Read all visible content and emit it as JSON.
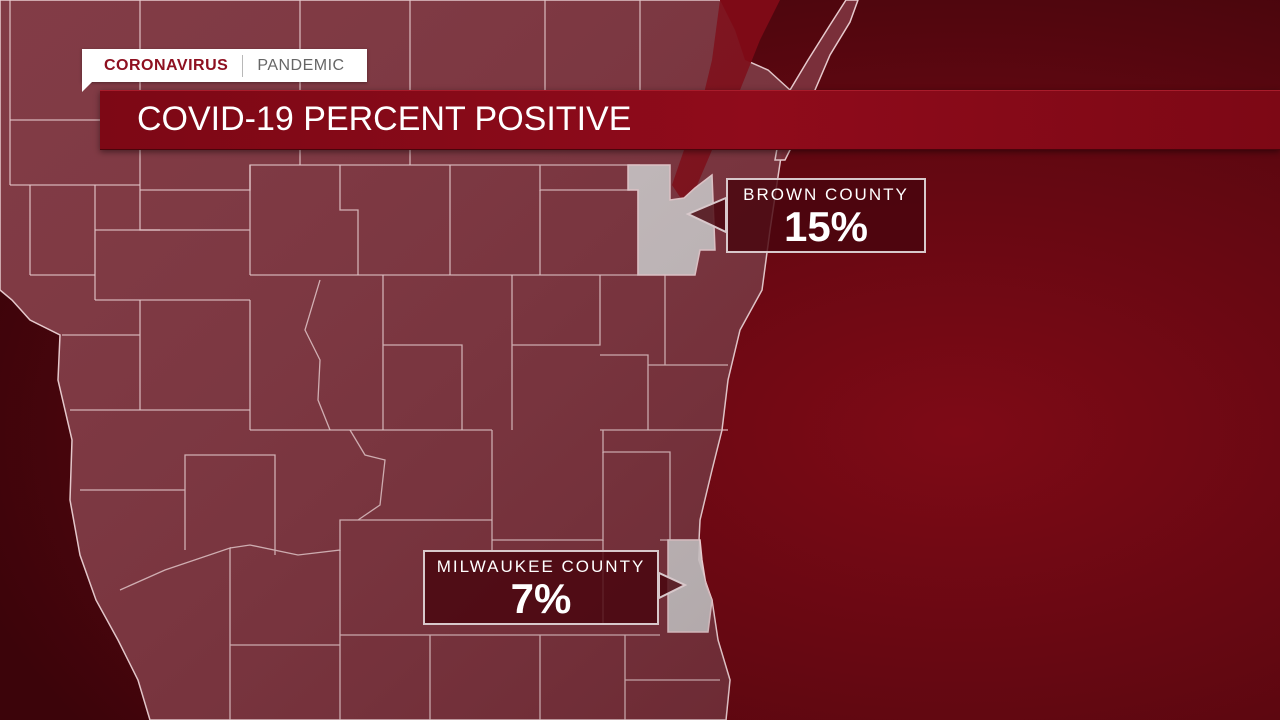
{
  "header": {
    "category": "CORONAVIRUS",
    "subcategory": "PANDEMIC",
    "title": "COVID-19 PERCENT POSITIVE"
  },
  "highlights": [
    {
      "county": "BROWN COUNTY",
      "value": "15%"
    },
    {
      "county": "MILWAUKEE COUNTY",
      "value": "7%"
    }
  ],
  "colors": {
    "accent": "#8e1020",
    "county_fill": "#7a2f3a",
    "county_border": "#e7c9cd",
    "highlight_fill": "#c6bcbe",
    "lake_background": "#6b0610"
  }
}
